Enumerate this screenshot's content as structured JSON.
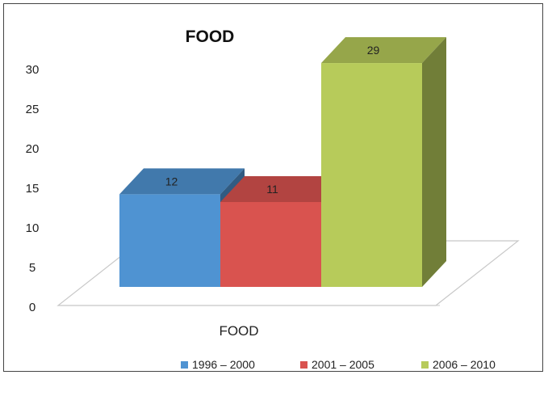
{
  "chart_data": {
    "type": "bar",
    "title": "FOOD",
    "categories": [
      "FOOD"
    ],
    "series": [
      {
        "name": "1996 – 2000",
        "values": [
          12
        ],
        "color": "#4F93D2"
      },
      {
        "name": "2001 – 2005",
        "values": [
          11
        ],
        "color": "#D9534F"
      },
      {
        "name": "2006 – 2010",
        "values": [
          29
        ],
        "color": "#B7CB5A"
      }
    ],
    "ylim": [
      0,
      30
    ],
    "yticks": [
      "0",
      "5",
      "10",
      "15",
      "20",
      "25",
      "30"
    ],
    "data_labels": [
      "12",
      "11",
      "29"
    ],
    "legend_position": "bottom",
    "grid": false,
    "style": "3d-clustered"
  }
}
